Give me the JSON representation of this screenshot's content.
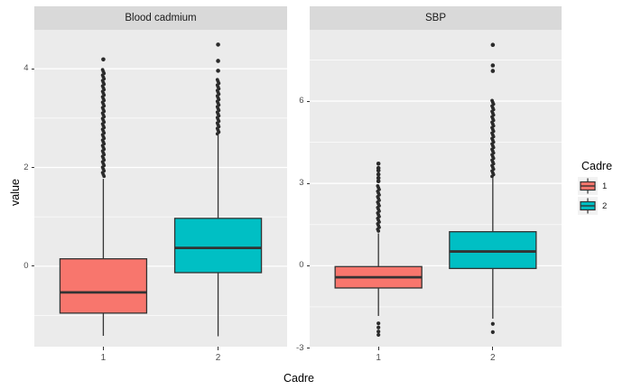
{
  "chart_data": {
    "type": "boxplot",
    "title": "",
    "xlabel": "Cadre",
    "ylabel": "value",
    "grid": true,
    "legend": {
      "title": "Cadre",
      "position": "right",
      "entries": [
        {
          "label": "1",
          "color": "#F8766D"
        },
        {
          "label": "2",
          "color": "#00BFC4"
        }
      ]
    },
    "style": {
      "panel_bg": "#EBEBEB",
      "strip_bg": "#D9D9D9",
      "grid_color": "#FFFFFF",
      "box_stroke": "#333333",
      "outlier_color": "#2b2b2b",
      "tick_label_color": "#4D4D4D",
      "key_bg": "#F2F2F2"
    },
    "facets": [
      {
        "title": "Blood cadmium",
        "ylim": [
          -1.63,
          4.79
        ],
        "yticks_major": [
          0,
          2,
          4
        ],
        "yticks_minor": [
          -1,
          1,
          3
        ],
        "categories": [
          "1",
          "2"
        ],
        "boxes": [
          {
            "group": "1",
            "color": "#F8766D",
            "whisker_low": -1.41,
            "q1": -0.95,
            "median": -0.53,
            "q3": 0.15,
            "whisker_high": 1.77,
            "outliers_low": [],
            "outliers_high_dense": [
              1.79,
              3.98
            ],
            "outliers_high_points": [
              4.19
            ]
          },
          {
            "group": "2",
            "color": "#00BFC4",
            "whisker_low": -1.42,
            "q1": -0.13,
            "median": 0.37,
            "q3": 0.97,
            "whisker_high": 2.65,
            "outliers_low": [],
            "outliers_high_dense": [
              2.67,
              3.78
            ],
            "outliers_high_points": [
              3.96,
              4.16,
              4.49
            ]
          }
        ]
      },
      {
        "title": "SBP",
        "ylim": [
          -2.95,
          8.6
        ],
        "yticks_major": [
          -3,
          0,
          3,
          6
        ],
        "yticks_minor": [
          -1.5,
          1.5,
          4.5,
          7.5
        ],
        "categories": [
          "1",
          "2"
        ],
        "boxes": [
          {
            "group": "1",
            "color": "#F8766D",
            "whisker_low": -1.83,
            "q1": -0.81,
            "median": -0.42,
            "q3": -0.03,
            "whisker_high": 1.18,
            "outliers_low": [
              -2.1,
              -2.25,
              -2.4,
              -2.52
            ],
            "outliers_high_dense": [
              1.2,
              2.91
            ],
            "outliers_high_points": [
              3.08,
              3.2,
              3.33,
              3.47,
              3.56,
              3.72
            ]
          },
          {
            "group": "2",
            "color": "#00BFC4",
            "whisker_low": -1.93,
            "q1": -0.1,
            "median": 0.52,
            "q3": 1.24,
            "whisker_high": 3.2,
            "outliers_low": [
              -2.12,
              -2.42
            ],
            "outliers_high_dense": [
              3.22,
              6.02
            ],
            "outliers_high_points": [
              7.1,
              7.3,
              8.05
            ]
          }
        ]
      }
    ]
  }
}
